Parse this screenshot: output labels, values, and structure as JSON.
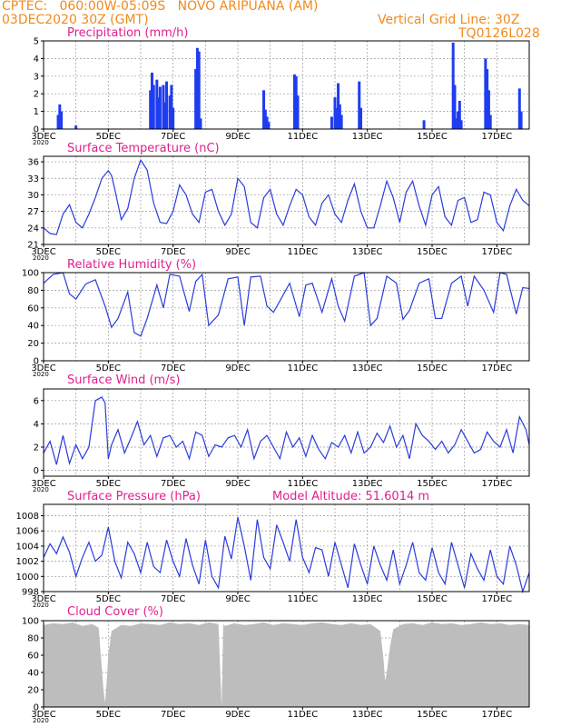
{
  "header": {
    "line1": "CPTEC:   060:00W-05:09S   NOVO ARIPUANA (AM)",
    "line2": "03DEC2020 30Z (GMT)",
    "grid_note": "Vertical Grid Line: 30Z",
    "run_code": "TQ0126L028"
  },
  "x_axis": {
    "labels": [
      "3DEC",
      "5DEC",
      "7DEC",
      "9DEC",
      "11DEC",
      "13DEC",
      "15DEC",
      "17DEC"
    ],
    "year": "2020",
    "start_day": 3.0,
    "end_day": 18.0
  },
  "model_altitude": "Model Altitude: 51.6014 m",
  "colors": {
    "line": "#2a3cdc",
    "bar": "#1f3cf0",
    "cloud": "#bdbdbd",
    "header": "#f08a1e",
    "title": "#e0208e"
  },
  "chart_data": [
    {
      "type": "bar",
      "title": "Precipitation (mm/h)",
      "ylim": [
        0,
        5
      ],
      "yticks": [
        0,
        1,
        2,
        3,
        4,
        5
      ],
      "x": [
        3.45,
        3.5,
        3.55,
        4.0,
        6.3,
        6.35,
        6.4,
        6.5,
        6.55,
        6.6,
        6.7,
        6.75,
        6.8,
        6.9,
        6.95,
        7.0,
        7.7,
        7.75,
        7.8,
        7.85,
        9.8,
        9.85,
        9.9,
        9.95,
        10.75,
        10.8,
        10.85,
        11.9,
        12.0,
        12.05,
        12.1,
        12.15,
        12.2,
        12.75,
        12.8,
        14.75,
        15.65,
        15.7,
        15.75,
        15.8,
        15.85,
        15.9,
        16.65,
        16.7,
        16.75,
        16.8,
        17.7,
        17.75
      ],
      "values": [
        0.8,
        1.4,
        1.0,
        0.2,
        2.2,
        3.2,
        2.5,
        2.8,
        1.8,
        2.4,
        2.5,
        1.5,
        2.7,
        1.9,
        2.5,
        1.2,
        3.4,
        4.6,
        4.4,
        0.6,
        2.2,
        1.1,
        0.7,
        0.4,
        3.1,
        3.0,
        1.9,
        0.7,
        1.8,
        1.2,
        2.6,
        1.4,
        0.8,
        2.7,
        1.2,
        0.5,
        4.9,
        2.5,
        0.6,
        1.0,
        1.6,
        0.5,
        4.0,
        3.4,
        2.2,
        0.8,
        2.3,
        1.0
      ]
    },
    {
      "type": "line",
      "title": "Surface Temperature (nC)",
      "ylim": [
        21,
        37
      ],
      "yticks": [
        21,
        24,
        27,
        30,
        33,
        36
      ],
      "x": [
        3.0,
        3.2,
        3.4,
        3.6,
        3.8,
        4.0,
        4.2,
        4.4,
        4.6,
        4.8,
        5.0,
        5.1,
        5.2,
        5.4,
        5.6,
        5.8,
        6.0,
        6.2,
        6.4,
        6.6,
        6.8,
        7.0,
        7.2,
        7.4,
        7.6,
        7.8,
        8.0,
        8.2,
        8.4,
        8.6,
        8.8,
        9.0,
        9.2,
        9.4,
        9.6,
        9.8,
        10.0,
        10.2,
        10.4,
        10.6,
        10.8,
        11.0,
        11.2,
        11.4,
        11.6,
        11.8,
        12.0,
        12.2,
        12.4,
        12.6,
        12.8,
        13.0,
        13.2,
        13.4,
        13.6,
        13.8,
        14.0,
        14.2,
        14.4,
        14.6,
        14.8,
        15.0,
        15.2,
        15.4,
        15.6,
        15.8,
        16.0,
        16.2,
        16.4,
        16.6,
        16.8,
        17.0,
        17.2,
        17.4,
        17.6,
        17.8,
        18.0
      ],
      "values": [
        24.0,
        23.0,
        22.8,
        26.5,
        28.2,
        25.0,
        24.0,
        26.5,
        29.5,
        33.0,
        34.4,
        33.5,
        31.0,
        25.5,
        27.5,
        33.0,
        36.3,
        34.5,
        28.5,
        25.0,
        24.8,
        27.0,
        31.8,
        30.0,
        26.5,
        25.0,
        30.5,
        31.0,
        27.0,
        24.5,
        26.5,
        33.0,
        31.5,
        25.0,
        24.0,
        29.5,
        31.0,
        26.5,
        24.5,
        28.0,
        31.0,
        30.0,
        26.0,
        24.5,
        28.5,
        30.0,
        26.5,
        25.0,
        29.0,
        32.0,
        27.0,
        24.0,
        24.0,
        28.0,
        32.5,
        29.5,
        25.0,
        30.5,
        32.5,
        28.0,
        24.5,
        30.0,
        31.5,
        26.0,
        24.5,
        29.0,
        29.5,
        25.0,
        25.5,
        30.5,
        30.0,
        25.0,
        23.5,
        28.0,
        31.0,
        29.0,
        28.0
      ]
    },
    {
      "type": "line",
      "title": "Relative Humidity (%)",
      "ylim": [
        0,
        100
      ],
      "yticks": [
        0,
        20,
        40,
        60,
        80,
        100
      ],
      "x": [
        3.0,
        3.3,
        3.6,
        3.8,
        4.0,
        4.3,
        4.6,
        4.9,
        5.1,
        5.3,
        5.6,
        5.8,
        6.0,
        6.2,
        6.5,
        6.7,
        6.9,
        7.2,
        7.5,
        7.7,
        7.9,
        8.1,
        8.4,
        8.7,
        9.0,
        9.2,
        9.4,
        9.7,
        9.9,
        10.1,
        10.3,
        10.6,
        10.9,
        11.1,
        11.3,
        11.6,
        11.9,
        12.1,
        12.3,
        12.6,
        12.9,
        13.1,
        13.3,
        13.6,
        13.9,
        14.1,
        14.3,
        14.6,
        14.9,
        15.1,
        15.3,
        15.6,
        15.9,
        16.1,
        16.3,
        16.6,
        16.9,
        17.1,
        17.3,
        17.6,
        17.8,
        18.0
      ],
      "values": [
        88,
        98,
        100,
        76,
        70,
        87,
        92,
        62,
        38,
        48,
        78,
        32,
        28,
        48,
        86,
        60,
        98,
        96,
        56,
        90,
        98,
        40,
        52,
        93,
        95,
        40,
        95,
        96,
        62,
        55,
        68,
        88,
        50,
        86,
        88,
        55,
        93,
        62,
        45,
        96,
        100,
        40,
        48,
        96,
        88,
        47,
        57,
        88,
        93,
        48,
        48,
        88,
        96,
        62,
        96,
        80,
        55,
        100,
        98,
        53,
        83,
        82
      ]
    },
    {
      "type": "line",
      "title": "Surface Wind (m/s)",
      "ylim": [
        -0.5,
        7
      ],
      "yticks": [
        0,
        2,
        4,
        6
      ],
      "x": [
        3.0,
        3.2,
        3.4,
        3.6,
        3.8,
        4.0,
        4.2,
        4.4,
        4.6,
        4.8,
        4.9,
        5.0,
        5.1,
        5.3,
        5.5,
        5.7,
        5.9,
        6.1,
        6.3,
        6.5,
        6.7,
        6.9,
        7.1,
        7.3,
        7.5,
        7.7,
        7.9,
        8.1,
        8.3,
        8.5,
        8.7,
        8.9,
        9.1,
        9.3,
        9.5,
        9.7,
        9.9,
        10.1,
        10.3,
        10.5,
        10.7,
        10.9,
        11.1,
        11.3,
        11.5,
        11.7,
        11.9,
        12.1,
        12.3,
        12.5,
        12.7,
        12.9,
        13.1,
        13.3,
        13.5,
        13.7,
        13.9,
        14.1,
        14.3,
        14.5,
        14.7,
        14.9,
        15.1,
        15.3,
        15.5,
        15.7,
        15.9,
        16.1,
        16.3,
        16.5,
        16.7,
        16.9,
        17.1,
        17.3,
        17.5,
        17.7,
        17.9,
        18.0
      ],
      "values": [
        1.5,
        2.5,
        0.5,
        3.0,
        0.6,
        2.2,
        1.0,
        2.0,
        6.0,
        6.3,
        5.8,
        1.0,
        2.2,
        3.5,
        1.5,
        2.8,
        4.2,
        2.2,
        3.0,
        1.2,
        2.8,
        3.0,
        2.0,
        2.5,
        1.0,
        3.3,
        3.0,
        1.2,
        2.2,
        2.0,
        2.8,
        3.0,
        2.0,
        3.5,
        1.0,
        2.5,
        3.0,
        2.0,
        1.0,
        3.3,
        2.0,
        2.8,
        1.2,
        3.0,
        1.8,
        1.0,
        2.4,
        2.0,
        3.0,
        1.5,
        3.3,
        1.5,
        2.0,
        3.2,
        2.4,
        3.8,
        2.0,
        3.0,
        1.0,
        4.0,
        3.0,
        2.5,
        1.8,
        2.5,
        1.5,
        2.2,
        3.5,
        2.5,
        1.5,
        1.8,
        3.3,
        2.5,
        2.0,
        3.5,
        1.5,
        4.6,
        3.5,
        2.2
      ]
    },
    {
      "type": "line",
      "title": "Surface Pressure (hPa)",
      "ylim": [
        998,
        1009.5
      ],
      "yticks": [
        998,
        1000,
        1002,
        1004,
        1006,
        1008
      ],
      "x": [
        3.0,
        3.2,
        3.4,
        3.6,
        3.8,
        4.0,
        4.2,
        4.4,
        4.6,
        4.8,
        5.0,
        5.2,
        5.4,
        5.6,
        5.8,
        6.0,
        6.2,
        6.4,
        6.6,
        6.8,
        7.0,
        7.2,
        7.4,
        7.6,
        7.8,
        8.0,
        8.2,
        8.4,
        8.6,
        8.8,
        9.0,
        9.2,
        9.4,
        9.6,
        9.8,
        10.0,
        10.2,
        10.4,
        10.6,
        10.8,
        11.0,
        11.2,
        11.4,
        11.6,
        11.8,
        12.0,
        12.2,
        12.4,
        12.6,
        12.8,
        13.0,
        13.2,
        13.4,
        13.6,
        13.8,
        14.0,
        14.2,
        14.4,
        14.6,
        14.8,
        15.0,
        15.2,
        15.4,
        15.6,
        15.8,
        16.0,
        16.2,
        16.4,
        16.6,
        16.8,
        17.0,
        17.2,
        17.4,
        17.6,
        17.8,
        18.0
      ],
      "values": [
        1002.5,
        1004.3,
        1003.0,
        1005.2,
        1003.2,
        1000.0,
        1002.5,
        1004.5,
        1002.0,
        1002.8,
        1006.5,
        1002.0,
        999.8,
        1004.5,
        1003.0,
        1000.5,
        1004.5,
        1001.3,
        1000.5,
        1004.8,
        1002.0,
        1000.0,
        1005.0,
        1001.5,
        999.0,
        1004.8,
        1000.0,
        998.5,
        1005.3,
        1002.3,
        1007.8,
        1004.0,
        999.5,
        1007.5,
        1002.5,
        1001.0,
        1006.8,
        1004.5,
        1002.0,
        1007.5,
        1002.5,
        1000.5,
        1003.8,
        1003.5,
        1000.0,
        1004.5,
        1001.5,
        998.5,
        1004.3,
        1001.5,
        999.0,
        1004.0,
        1001.5,
        999.5,
        1003.5,
        999.0,
        1001.5,
        1004.5,
        1000.5,
        999.5,
        1003.8,
        1000.5,
        999.0,
        1004.5,
        1001.5,
        998.5,
        1003.0,
        1001.0,
        999.5,
        1003.5,
        1000.0,
        999.0,
        1004.0,
        1001.5,
        998.0,
        1000.5
      ]
    },
    {
      "type": "area",
      "title": "Cloud Cover (%)",
      "ylim": [
        0,
        100
      ],
      "yticks": [
        0,
        20,
        40,
        60,
        80,
        100
      ],
      "x": [
        3.0,
        3.3,
        3.6,
        3.9,
        4.2,
        4.5,
        4.7,
        4.8,
        4.85,
        4.9,
        4.95,
        5.0,
        5.1,
        5.4,
        5.7,
        6.0,
        6.3,
        6.6,
        6.9,
        7.2,
        7.5,
        7.8,
        8.1,
        8.4,
        8.5,
        8.55,
        8.6,
        8.9,
        9.2,
        9.5,
        9.8,
        10.1,
        10.4,
        10.7,
        11.0,
        11.3,
        11.6,
        11.9,
        12.2,
        12.5,
        12.8,
        13.1,
        13.4,
        13.5,
        13.55,
        13.6,
        13.7,
        13.8,
        14.1,
        14.4,
        14.7,
        15.0,
        15.3,
        15.6,
        15.9,
        16.2,
        16.5,
        16.8,
        17.1,
        17.4,
        17.7,
        18.0
      ],
      "values": [
        95,
        97,
        96,
        98,
        94,
        96,
        92,
        45,
        20,
        5,
        30,
        60,
        88,
        95,
        94,
        97,
        96,
        95,
        98,
        96,
        97,
        95,
        98,
        96,
        0,
        96,
        94,
        97,
        95,
        96,
        98,
        95,
        97,
        96,
        95,
        97,
        98,
        96,
        95,
        97,
        95,
        96,
        88,
        55,
        30,
        40,
        70,
        90,
        96,
        97,
        95,
        98,
        96,
        97,
        95,
        96,
        98,
        96,
        97,
        95,
        96,
        95
      ]
    }
  ]
}
